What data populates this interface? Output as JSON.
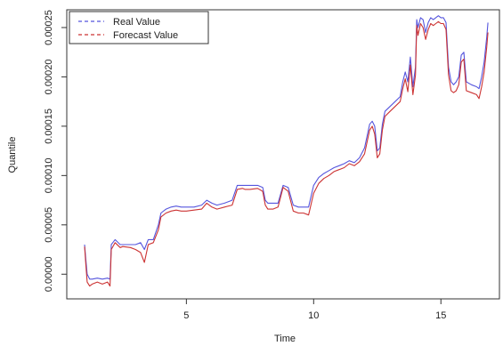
{
  "chart_data": {
    "type": "line",
    "xlabel": "Time",
    "ylabel": "Quantile",
    "xlim": [
      0.3,
      17.3
    ],
    "ylim": [
      -2.5e-05,
      0.000268
    ],
    "xticks": [
      5,
      10,
      15
    ],
    "xtick_labels": [
      "5",
      "10",
      "15"
    ],
    "yticks": [
      0.0,
      5e-05,
      0.0001,
      0.00015,
      0.0002,
      0.00025
    ],
    "ytick_labels": [
      "0.00000",
      "0.00005",
      "0.00010",
      "0.00015",
      "0.00020",
      "0.00025"
    ],
    "grid": false,
    "legend_position": "top-left",
    "series": [
      {
        "name": "Real Value",
        "color": "#5555dd",
        "dash": "dashed",
        "x": [
          1.0,
          1.05,
          1.1,
          1.2,
          1.3,
          1.5,
          1.7,
          1.9,
          2.0,
          2.05,
          2.2,
          2.4,
          2.5,
          2.8,
          3.0,
          3.2,
          3.35,
          3.5,
          3.7,
          3.9,
          4.0,
          4.2,
          4.4,
          4.6,
          4.8,
          5.0,
          5.3,
          5.6,
          5.8,
          6.0,
          6.2,
          6.5,
          6.8,
          7.0,
          7.2,
          7.3,
          7.5,
          7.8,
          8.0,
          8.1,
          8.2,
          8.4,
          8.6,
          8.8,
          9.0,
          9.2,
          9.4,
          9.6,
          9.8,
          10.0,
          10.2,
          10.4,
          10.6,
          10.8,
          11.0,
          11.2,
          11.4,
          11.6,
          11.8,
          12.0,
          12.2,
          12.3,
          12.4,
          12.5,
          12.6,
          12.7,
          12.8,
          13.0,
          13.2,
          13.4,
          13.5,
          13.6,
          13.7,
          13.8,
          13.9,
          14.0,
          14.05,
          14.1,
          14.2,
          14.3,
          14.4,
          14.5,
          14.6,
          14.7,
          14.8,
          14.9,
          15.0,
          15.1,
          15.2,
          15.3,
          15.4,
          15.5,
          15.6,
          15.7,
          15.8,
          15.9,
          16.0,
          16.2,
          16.4,
          16.5,
          16.6,
          16.7,
          16.8,
          16.85
        ],
        "y": [
          3e-05,
          1.5e-05,
          0.0,
          -5e-06,
          -5e-06,
          -4e-06,
          -5e-06,
          -4e-06,
          -5e-06,
          3e-05,
          3.5e-05,
          3e-05,
          3e-05,
          3e-05,
          3e-05,
          3.2e-05,
          2.5e-05,
          3.5e-05,
          3.5e-05,
          5e-05,
          6.2e-05,
          6.6e-05,
          6.8e-05,
          6.9e-05,
          6.8e-05,
          6.8e-05,
          6.8e-05,
          7e-05,
          7.5e-05,
          7.2e-05,
          7e-05,
          7.2e-05,
          7.5e-05,
          9e-05,
          9e-05,
          9e-05,
          9e-05,
          9e-05,
          8.8e-05,
          7.5e-05,
          7.2e-05,
          7.2e-05,
          7.2e-05,
          9e-05,
          8.8e-05,
          7e-05,
          6.8e-05,
          6.8e-05,
          6.8e-05,
          9e-05,
          9.8e-05,
          0.000102,
          0.000105,
          0.000108,
          0.00011,
          0.000112,
          0.000115,
          0.000113,
          0.000118,
          0.000128,
          0.000152,
          0.000155,
          0.00015,
          0.000125,
          0.000128,
          0.000152,
          0.000165,
          0.00017,
          0.000175,
          0.00018,
          0.000195,
          0.000205,
          0.000195,
          0.00022,
          0.00019,
          0.00021,
          0.000258,
          0.00025,
          0.00026,
          0.000258,
          0.000245,
          0.000255,
          0.00026,
          0.000258,
          0.00026,
          0.000262,
          0.00026,
          0.00026,
          0.000255,
          0.00021,
          0.000195,
          0.000192,
          0.000195,
          0.0002,
          0.000222,
          0.000225,
          0.000195,
          0.000192,
          0.00019,
          0.000188,
          0.0002,
          0.000215,
          0.00024,
          0.000255
        ]
      },
      {
        "name": "Forecast Value",
        "color": "#cc3333",
        "dash": "dashed",
        "x": [
          1.0,
          1.05,
          1.1,
          1.2,
          1.3,
          1.5,
          1.7,
          1.9,
          2.0,
          2.05,
          2.2,
          2.4,
          2.5,
          2.8,
          3.0,
          3.2,
          3.35,
          3.5,
          3.7,
          3.9,
          4.0,
          4.2,
          4.4,
          4.6,
          4.8,
          5.0,
          5.3,
          5.6,
          5.8,
          6.0,
          6.2,
          6.5,
          6.8,
          7.0,
          7.2,
          7.3,
          7.5,
          7.8,
          8.0,
          8.1,
          8.2,
          8.4,
          8.6,
          8.8,
          9.0,
          9.2,
          9.4,
          9.6,
          9.8,
          10.0,
          10.2,
          10.4,
          10.6,
          10.8,
          11.0,
          11.2,
          11.4,
          11.6,
          11.8,
          12.0,
          12.2,
          12.3,
          12.4,
          12.5,
          12.6,
          12.7,
          12.8,
          13.0,
          13.2,
          13.4,
          13.5,
          13.6,
          13.7,
          13.8,
          13.9,
          14.0,
          14.05,
          14.1,
          14.2,
          14.3,
          14.4,
          14.5,
          14.6,
          14.7,
          14.8,
          14.9,
          15.0,
          15.1,
          15.2,
          15.3,
          15.4,
          15.5,
          15.6,
          15.7,
          15.8,
          15.9,
          16.0,
          16.2,
          16.4,
          16.5,
          16.6,
          16.7,
          16.8,
          16.85
        ],
        "y": [
          2.8e-05,
          1e-05,
          -8e-06,
          -1.2e-05,
          -1e-05,
          -8e-06,
          -1e-05,
          -8e-06,
          -1.2e-05,
          2.5e-05,
          3.2e-05,
          2.7e-05,
          2.8e-05,
          2.7e-05,
          2.5e-05,
          2.2e-05,
          1.2e-05,
          3e-05,
          3.2e-05,
          4.5e-05,
          5.8e-05,
          6.2e-05,
          6.4e-05,
          6.5e-05,
          6.4e-05,
          6.4e-05,
          6.5e-05,
          6.6e-05,
          7.2e-05,
          6.8e-05,
          6.6e-05,
          6.8e-05,
          7e-05,
          8.6e-05,
          8.7e-05,
          8.6e-05,
          8.6e-05,
          8.7e-05,
          8.4e-05,
          7e-05,
          6.6e-05,
          6.6e-05,
          6.8e-05,
          8.8e-05,
          8.4e-05,
          6.4e-05,
          6.2e-05,
          6.2e-05,
          6e-05,
          8.2e-05,
          9.2e-05,
          9.7e-05,
          0.0001,
          0.000104,
          0.000106,
          0.000108,
          0.000112,
          0.00011,
          0.000114,
          0.000122,
          0.000146,
          0.00015,
          0.000142,
          0.000118,
          0.000122,
          0.000146,
          0.00016,
          0.000165,
          0.00017,
          0.000175,
          0.000188,
          0.000198,
          0.000185,
          0.000212,
          0.000182,
          0.000202,
          0.000252,
          0.000242,
          0.000254,
          0.00025,
          0.000238,
          0.000248,
          0.000254,
          0.000252,
          0.000254,
          0.000256,
          0.000254,
          0.000254,
          0.000248,
          0.000202,
          0.000186,
          0.000184,
          0.000186,
          0.000192,
          0.000215,
          0.000218,
          0.000186,
          0.000184,
          0.000182,
          0.000178,
          0.00019,
          0.000205,
          0.00023,
          0.000245
        ]
      }
    ]
  }
}
